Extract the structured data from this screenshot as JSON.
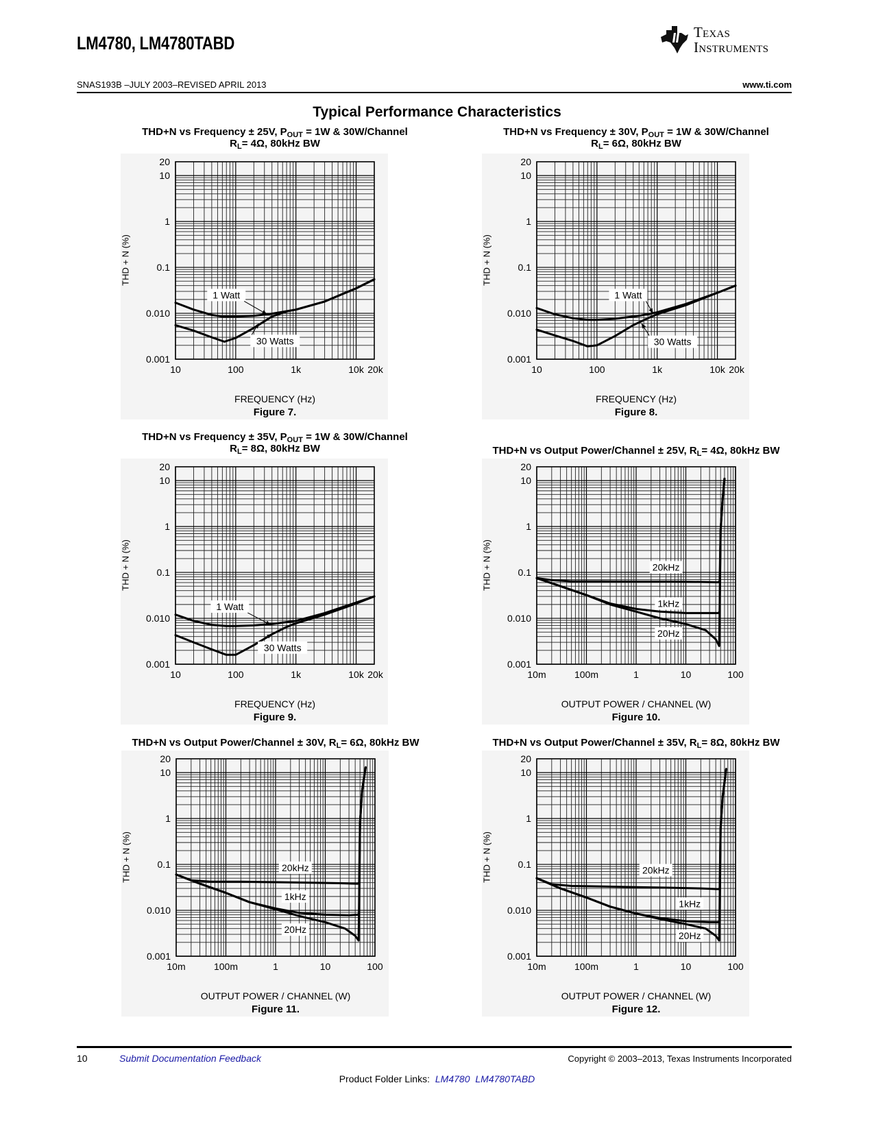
{
  "header": {
    "doc_title": "LM4780, LM4780TABD",
    "doc_id": "SNAS193B –JULY 2003–REVISED APRIL 2013",
    "website": "www.ti.com",
    "logo_line1": "Texas",
    "logo_line2": "Instruments"
  },
  "section_title": "Typical Performance Characteristics",
  "footer": {
    "page_number": "10",
    "feedback_link": "Submit Documentation Feedback",
    "copyright": "Copyright © 2003–2013, Texas Instruments Incorporated",
    "product_links_label": "Product Folder Links:",
    "product_links": [
      "LM4780",
      "LM4780TABD"
    ]
  },
  "chart_data": [
    {
      "type": "line",
      "figure": "Figure 7.",
      "title_line1": [
        "THD+N vs Frequency ± 25V, P",
        "OUT",
        " = 1W & 30W/Channel"
      ],
      "title_line2": [
        "R",
        "L",
        "= 4Ω, 80kHz BW"
      ],
      "xlabel": "FREQUENCY (Hz)",
      "ylabel": "THD + N (%)",
      "xscale": "log",
      "yscale": "log",
      "xlim": [
        10,
        20000
      ],
      "ylim": [
        0.001,
        20
      ],
      "xticks": [
        10,
        100,
        1000,
        10000,
        20000
      ],
      "xtick_labels": [
        "10",
        "100",
        "1k",
        "10k",
        "20k"
      ],
      "yticks": [
        0.001,
        0.01,
        0.1,
        1,
        10,
        20
      ],
      "ytick_labels": [
        "0.001",
        "0.010",
        "0.1",
        "1",
        "10",
        "20"
      ],
      "grid": true,
      "series": [
        {
          "name": "1 Watt",
          "x": [
            10,
            20,
            40,
            60,
            100,
            200,
            400,
            1000,
            3000,
            10000,
            20000
          ],
          "y": [
            0.017,
            0.012,
            0.0092,
            0.0085,
            0.0085,
            0.0088,
            0.0098,
            0.012,
            0.018,
            0.035,
            0.055
          ]
        },
        {
          "name": "30 Watts",
          "x": [
            10,
            20,
            40,
            65,
            100,
            200,
            400,
            700,
            1000,
            3000,
            10000,
            20000
          ],
          "y": [
            0.0055,
            0.0042,
            0.003,
            0.0024,
            0.0029,
            0.0048,
            0.0085,
            0.011,
            0.012,
            0.018,
            0.035,
            0.055
          ]
        }
      ],
      "annotations": [
        {
          "text": "1 Watt",
          "x": 70,
          "y": 0.025,
          "arrow_to": [
            330,
            0.0095
          ]
        },
        {
          "text": "30 Watts",
          "x": 450,
          "y": 0.0025,
          "arrow_to": [
            240,
            0.006
          ]
        }
      ]
    },
    {
      "type": "line",
      "figure": "Figure 8.",
      "title_line1": [
        "THD+N vs Frequency ± 30V, P",
        "OUT",
        " = 1W & 30W/Channel"
      ],
      "title_line2": [
        "R",
        "L",
        "= 6Ω, 80kHz BW"
      ],
      "xlabel": "FREQUENCY (Hz)",
      "ylabel": "THD + N (%)",
      "xscale": "log",
      "yscale": "log",
      "xlim": [
        10,
        20000
      ],
      "ylim": [
        0.001,
        20
      ],
      "xticks": [
        10,
        100,
        1000,
        10000,
        20000
      ],
      "xtick_labels": [
        "10",
        "100",
        "1k",
        "10k",
        "20k"
      ],
      "yticks": [
        0.001,
        0.01,
        0.1,
        1,
        10,
        20
      ],
      "ytick_labels": [
        "0.001",
        "0.010",
        "0.1",
        "1",
        "10",
        "20"
      ],
      "grid": true,
      "series": [
        {
          "name": "1 Watt",
          "x": [
            10,
            20,
            40,
            70,
            100,
            200,
            500,
            1000,
            3000,
            10000,
            20000
          ],
          "y": [
            0.013,
            0.0095,
            0.0078,
            0.0072,
            0.0072,
            0.0076,
            0.0088,
            0.0105,
            0.016,
            0.028,
            0.04
          ]
        },
        {
          "name": "30 Watts",
          "x": [
            10,
            20,
            40,
            70,
            100,
            200,
            400,
            700,
            1000,
            3000,
            10000,
            20000
          ],
          "y": [
            0.0044,
            0.0033,
            0.0025,
            0.0019,
            0.002,
            0.0032,
            0.0055,
            0.0078,
            0.0095,
            0.015,
            0.028,
            0.04
          ]
        }
      ],
      "annotations": [
        {
          "text": "1 Watt",
          "x": 330,
          "y": 0.025,
          "arrow_to": [
            850,
            0.01
          ]
        },
        {
          "text": "30 Watts",
          "x": 1800,
          "y": 0.0024,
          "arrow_to": [
            550,
            0.006
          ]
        }
      ]
    },
    {
      "type": "line",
      "figure": "Figure 9.",
      "title_line1": [
        "THD+N vs Frequency ± 35V, P",
        "OUT",
        " = 1W & 30W/Channel"
      ],
      "title_line2": [
        "R",
        "L",
        "= 8Ω, 80kHz BW"
      ],
      "xlabel": "FREQUENCY (Hz)",
      "ylabel": "THD + N (%)",
      "xscale": "log",
      "yscale": "log",
      "xlim": [
        10,
        20000
      ],
      "ylim": [
        0.001,
        20
      ],
      "xticks": [
        10,
        100,
        1000,
        10000,
        20000
      ],
      "xtick_labels": [
        "10",
        "100",
        "1k",
        "10k",
        "20k"
      ],
      "yticks": [
        0.001,
        0.01,
        0.1,
        1,
        10,
        20
      ],
      "ytick_labels": [
        "0.001",
        "0.010",
        "0.1",
        "1",
        "10",
        "20"
      ],
      "grid": true,
      "series": [
        {
          "name": "1 Watt",
          "x": [
            10,
            20,
            40,
            70,
            100,
            200,
            400,
            1000,
            3000,
            10000,
            20000
          ],
          "y": [
            0.012,
            0.0088,
            0.0072,
            0.0068,
            0.0068,
            0.007,
            0.0075,
            0.0088,
            0.013,
            0.022,
            0.03
          ]
        },
        {
          "name": "30 Watts",
          "x": [
            10,
            20,
            40,
            70,
            100,
            200,
            400,
            700,
            1000,
            3000,
            10000,
            20000
          ],
          "y": [
            0.0043,
            0.003,
            0.0021,
            0.0016,
            0.0016,
            0.0026,
            0.0045,
            0.0065,
            0.0078,
            0.012,
            0.021,
            0.03
          ]
        }
      ],
      "annotations": [
        {
          "text": "1 Watt",
          "x": 80,
          "y": 0.018,
          "arrow_to": [
            380,
            0.0072
          ]
        },
        {
          "text": "30 Watts",
          "x": 600,
          "y": 0.0023,
          "arrow_to": [
            400,
            0.0045
          ]
        }
      ]
    },
    {
      "type": "line",
      "figure": "Figure 10.",
      "title_line1": [
        "THD+N vs Output Power/Channel ± 25V, R",
        "L",
        "= 4Ω, 80kHz BW"
      ],
      "title_line2": [],
      "xlabel": "OUTPUT POWER / CHANNEL (W)",
      "ylabel": "THD + N (%)",
      "xscale": "log",
      "yscale": "log",
      "xlim": [
        0.01,
        100
      ],
      "ylim": [
        0.001,
        20
      ],
      "xticks": [
        0.01,
        0.1,
        1,
        10,
        100
      ],
      "xtick_labels": [
        "10m",
        "100m",
        "1",
        "10",
        "100"
      ],
      "yticks": [
        0.001,
        0.01,
        0.1,
        1,
        10,
        20
      ],
      "ytick_labels": [
        "0.001",
        "0.010",
        "0.1",
        "1",
        "10",
        "20"
      ],
      "grid": true,
      "series": [
        {
          "name": "20kHz",
          "x": [
            0.01,
            0.02,
            0.05,
            0.2,
            1,
            5,
            20,
            45,
            48,
            50,
            55,
            60
          ],
          "y": [
            0.075,
            0.068,
            0.064,
            0.064,
            0.063,
            0.063,
            0.062,
            0.061,
            0.065,
            0.8,
            4,
            11
          ]
        },
        {
          "name": "1kHz",
          "x": [
            0.01,
            0.03,
            0.1,
            0.3,
            1,
            3,
            10,
            30,
            45,
            48,
            50,
            55,
            60
          ],
          "y": [
            0.075,
            0.05,
            0.032,
            0.021,
            0.016,
            0.014,
            0.013,
            0.013,
            0.013,
            0.014,
            0.8,
            4,
            11
          ]
        },
        {
          "name": "20Hz",
          "x": [
            0.01,
            0.03,
            0.1,
            0.3,
            1,
            3,
            10,
            25,
            40,
            47,
            50,
            55,
            60
          ],
          "y": [
            0.075,
            0.05,
            0.032,
            0.02,
            0.014,
            0.01,
            0.0075,
            0.0055,
            0.0035,
            0.0025,
            0.8,
            4,
            11
          ]
        }
      ],
      "annotations": [
        {
          "text": "20kHz",
          "x": 4,
          "y": 0.13
        },
        {
          "text": "1kHz",
          "x": 4.5,
          "y": 0.021
        },
        {
          "text": "20Hz",
          "x": 4.5,
          "y": 0.0047
        }
      ]
    },
    {
      "type": "line",
      "figure": "Figure 11.",
      "title_line1": [
        "THD+N vs Output Power/Channel ± 30V, R",
        "L",
        "= 6Ω, 80kHz BW"
      ],
      "title_line2": [],
      "xlabel": "OUTPUT POWER / CHANNEL (W)",
      "ylabel": "THD + N (%)",
      "xscale": "log",
      "yscale": "log",
      "xlim": [
        0.01,
        100
      ],
      "ylim": [
        0.001,
        20
      ],
      "xticks": [
        0.01,
        0.1,
        1,
        10,
        100
      ],
      "xtick_labels": [
        "10m",
        "100m",
        "1",
        "10",
        "100"
      ],
      "yticks": [
        0.001,
        0.01,
        0.1,
        1,
        10,
        20
      ],
      "ytick_labels": [
        "0.001",
        "0.010",
        "0.1",
        "1",
        "10",
        "20"
      ],
      "grid": true,
      "series": [
        {
          "name": "20kHz",
          "x": [
            0.01,
            0.02,
            0.05,
            0.2,
            1,
            5,
            20,
            45,
            48,
            50,
            55,
            65
          ],
          "y": [
            0.06,
            0.045,
            0.042,
            0.042,
            0.041,
            0.04,
            0.039,
            0.038,
            0.04,
            0.8,
            4,
            13
          ]
        },
        {
          "name": "1kHz",
          "x": [
            0.01,
            0.03,
            0.1,
            0.3,
            1,
            3,
            10,
            30,
            45,
            48,
            50,
            55,
            65
          ],
          "y": [
            0.06,
            0.038,
            0.024,
            0.015,
            0.011,
            0.0088,
            0.008,
            0.0078,
            0.008,
            0.0085,
            0.8,
            4,
            13
          ]
        },
        {
          "name": "20Hz",
          "x": [
            0.01,
            0.03,
            0.1,
            0.3,
            1,
            3,
            10,
            25,
            40,
            47,
            50,
            55,
            65
          ],
          "y": [
            0.06,
            0.038,
            0.024,
            0.015,
            0.0105,
            0.0075,
            0.0055,
            0.004,
            0.0028,
            0.0022,
            0.8,
            4,
            13
          ]
        }
      ],
      "annotations": [
        {
          "text": "20kHz",
          "x": 2.5,
          "y": 0.085
        },
        {
          "text": "1kHz",
          "x": 2.5,
          "y": 0.02
        },
        {
          "text": "20Hz",
          "x": 2.5,
          "y": 0.0038
        }
      ]
    },
    {
      "type": "line",
      "figure": "Figure 12.",
      "title_line1": [
        "THD+N vs Output Power/Channel ± 35V, R",
        "L",
        "= 8Ω, 80kHz BW"
      ],
      "title_line2": [],
      "xlabel": "OUTPUT POWER / CHANNEL (W)",
      "ylabel": "THD + N (%)",
      "xscale": "log",
      "yscale": "log",
      "xlim": [
        0.01,
        100
      ],
      "ylim": [
        0.001,
        20
      ],
      "xticks": [
        0.01,
        0.1,
        1,
        10,
        100
      ],
      "xtick_labels": [
        "10m",
        "100m",
        "1",
        "10",
        "100"
      ],
      "yticks": [
        0.001,
        0.01,
        0.1,
        1,
        10,
        20
      ],
      "ytick_labels": [
        "0.001",
        "0.010",
        "0.1",
        "1",
        "10",
        "20"
      ],
      "grid": true,
      "series": [
        {
          "name": "20kHz",
          "x": [
            0.01,
            0.02,
            0.05,
            0.2,
            1,
            5,
            20,
            45,
            48,
            50,
            55,
            65
          ],
          "y": [
            0.05,
            0.037,
            0.034,
            0.033,
            0.032,
            0.031,
            0.03,
            0.029,
            0.03,
            0.6,
            3,
            12
          ]
        },
        {
          "name": "1kHz",
          "x": [
            0.01,
            0.03,
            0.1,
            0.3,
            1,
            3,
            10,
            30,
            45,
            48,
            50,
            55,
            65
          ],
          "y": [
            0.05,
            0.03,
            0.019,
            0.012,
            0.0085,
            0.0068,
            0.0058,
            0.0055,
            0.0055,
            0.006,
            0.6,
            3,
            12
          ]
        },
        {
          "name": "20Hz",
          "x": [
            0.01,
            0.03,
            0.1,
            0.3,
            1,
            3,
            10,
            25,
            40,
            47,
            50,
            55,
            65
          ],
          "y": [
            0.05,
            0.03,
            0.019,
            0.012,
            0.0085,
            0.0065,
            0.005,
            0.004,
            0.0028,
            0.0022,
            0.6,
            3,
            12
          ]
        }
      ],
      "annotations": [
        {
          "text": "20kHz",
          "x": 2.5,
          "y": 0.075
        },
        {
          "text": "1kHz",
          "x": 12,
          "y": 0.014
        },
        {
          "text": "20Hz",
          "x": 12,
          "y": 0.0028
        }
      ]
    }
  ]
}
